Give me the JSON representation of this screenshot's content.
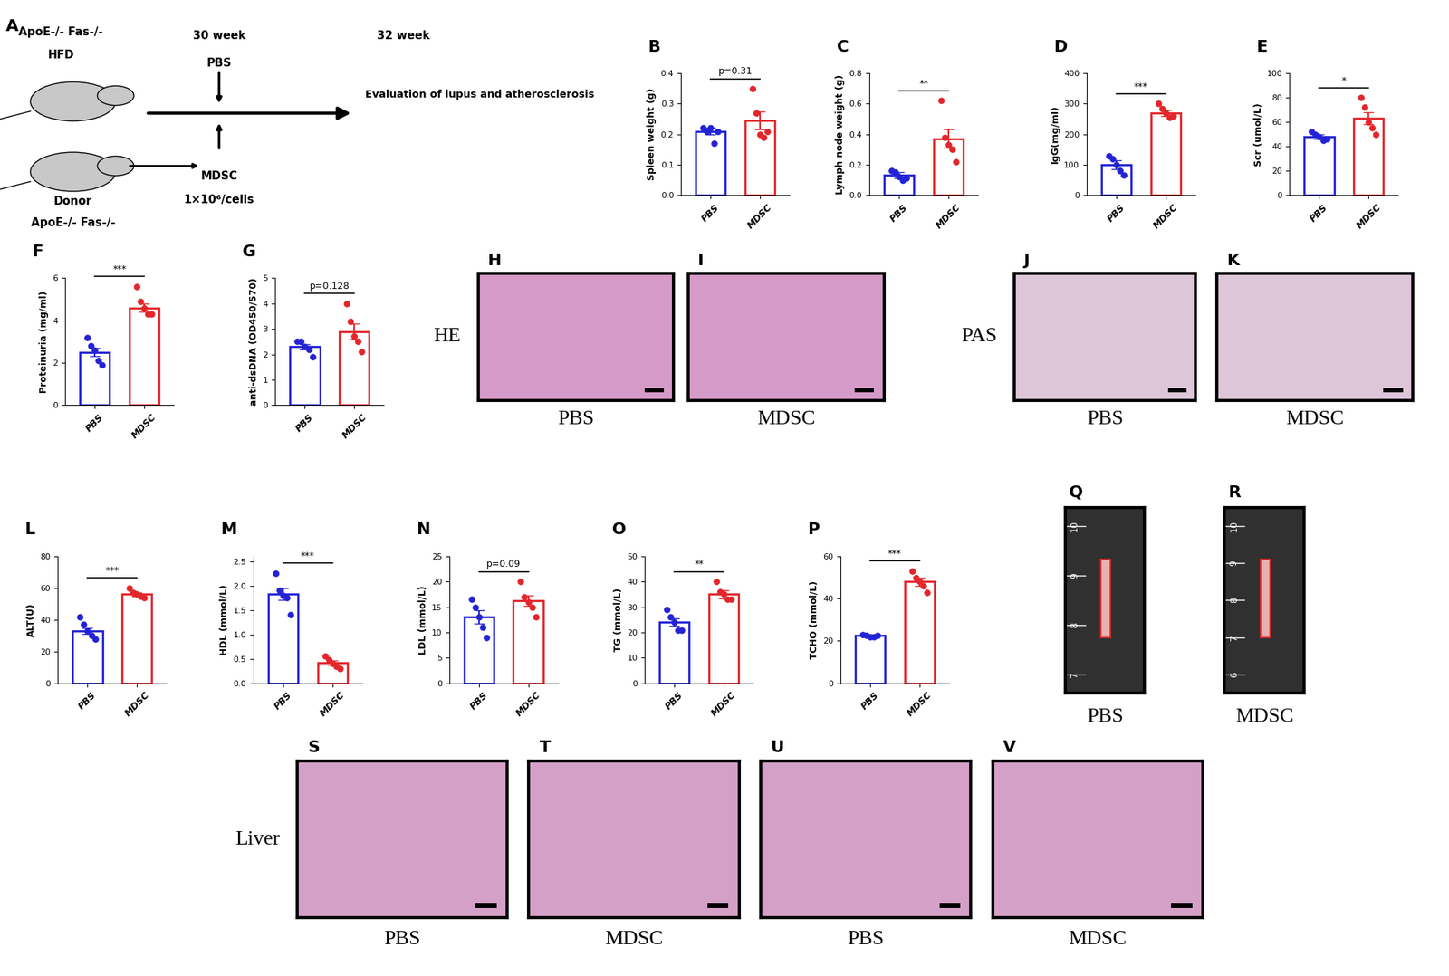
{
  "chart_data": [
    {
      "type": "bar",
      "panel": "B",
      "categories": [
        "PBS",
        "MDSC"
      ],
      "values": [
        0.21,
        0.245
      ],
      "errors": [
        0.01,
        0.03
      ],
      "points": [
        [
          0.22,
          0.21,
          0.22,
          0.17,
          0.21
        ],
        [
          0.35,
          0.27,
          0.2,
          0.19,
          0.21
        ]
      ],
      "colors": [
        "#2323d6",
        "#e3262b"
      ],
      "y_label": "Spleen weight (g)",
      "ylim": [
        0,
        0.4
      ],
      "yticks": [
        0.0,
        0.1,
        0.2,
        0.3,
        0.4
      ],
      "significance": "p=0.31"
    },
    {
      "type": "bar",
      "panel": "C",
      "categories": [
        "PBS",
        "MDSC"
      ],
      "values": [
        0.13,
        0.37
      ],
      "errors": [
        0.02,
        0.06
      ],
      "points": [
        [
          0.16,
          0.15,
          0.12,
          0.1,
          0.11
        ],
        [
          0.62,
          0.38,
          0.33,
          0.3,
          0.22
        ]
      ],
      "colors": [
        "#2323d6",
        "#e3262b"
      ],
      "y_label": "Lymph node weight (g)",
      "ylim": [
        0,
        0.8
      ],
      "yticks": [
        0.0,
        0.2,
        0.4,
        0.6,
        0.8
      ],
      "significance": "**"
    },
    {
      "type": "bar",
      "panel": "D",
      "categories": [
        "PBS",
        "MDSC"
      ],
      "values": [
        100,
        270
      ],
      "errors": [
        15,
        10
      ],
      "points": [
        [
          130,
          120,
          100,
          80,
          65
        ],
        [
          300,
          285,
          270,
          255,
          260
        ]
      ],
      "colors": [
        "#2323d6",
        "#e3262b"
      ],
      "y_label": "IgG(mg/ml)",
      "ylim": [
        0,
        400
      ],
      "yticks": [
        0,
        100,
        200,
        300,
        400
      ],
      "significance": "***"
    },
    {
      "type": "bar",
      "panel": "E",
      "categories": [
        "PBS",
        "MDSC"
      ],
      "values": [
        48,
        63
      ],
      "errors": [
        2,
        5
      ],
      "points": [
        [
          52,
          50,
          48,
          45,
          46
        ],
        [
          80,
          72,
          60,
          55,
          50
        ]
      ],
      "colors": [
        "#2323d6",
        "#e3262b"
      ],
      "y_label": "Scr (umol/L)",
      "ylim": [
        0,
        100
      ],
      "yticks": [
        0,
        20,
        40,
        60,
        80,
        100
      ],
      "significance": "*"
    },
    {
      "type": "bar",
      "panel": "F",
      "categories": [
        "PBS",
        "MDSC"
      ],
      "values": [
        2.5,
        4.6
      ],
      "errors": [
        0.2,
        0.2
      ],
      "points": [
        [
          3.2,
          2.8,
          2.6,
          2.1,
          1.9
        ],
        [
          5.6,
          4.9,
          4.6,
          4.3,
          4.3
        ]
      ],
      "colors": [
        "#2323d6",
        "#e3262b"
      ],
      "y_label": "Proteinuria (mg/ml)",
      "ylim": [
        0,
        6
      ],
      "yticks": [
        0,
        2,
        4,
        6
      ],
      "significance": "***"
    },
    {
      "type": "bar",
      "panel": "G",
      "categories": [
        "PBS",
        "MDSC"
      ],
      "values": [
        2.3,
        2.9
      ],
      "errors": [
        0.1,
        0.3
      ],
      "points": [
        [
          2.5,
          2.5,
          2.3,
          2.2,
          1.9
        ],
        [
          4.0,
          3.3,
          2.7,
          2.5,
          2.1
        ]
      ],
      "colors": [
        "#2323d6",
        "#e3262b"
      ],
      "y_label": "anti-dsDNA (OD450/570)",
      "ylim": [
        0,
        5
      ],
      "yticks": [
        0,
        1,
        2,
        3,
        4,
        5
      ],
      "significance": "p=0.128"
    },
    {
      "type": "bar",
      "panel": "L",
      "categories": [
        "PBS",
        "MDSC"
      ],
      "values": [
        33,
        56
      ],
      "errors": [
        2,
        1
      ],
      "points": [
        [
          42,
          37,
          33,
          30,
          28
        ],
        [
          60,
          57,
          56,
          55,
          54
        ]
      ],
      "colors": [
        "#2323d6",
        "#e3262b"
      ],
      "y_label": "ALT(U)",
      "ylim": [
        0,
        80
      ],
      "yticks": [
        0,
        20,
        40,
        60,
        80
      ],
      "significance": "***"
    },
    {
      "type": "bar",
      "panel": "M",
      "categories": [
        "PBS",
        "MDSC"
      ],
      "values": [
        1.83,
        0.42
      ],
      "errors": [
        0.12,
        0.05
      ],
      "points": [
        [
          2.25,
          1.9,
          1.8,
          1.75,
          1.4
        ],
        [
          0.55,
          0.48,
          0.4,
          0.35,
          0.3
        ]
      ],
      "colors": [
        "#2323d6",
        "#e3262b"
      ],
      "y_label": "HDL (mmol/L)",
      "ylim": [
        0,
        2.6
      ],
      "yticks": [
        0.0,
        0.5,
        1.0,
        1.5,
        2.0,
        2.5
      ],
      "significance": "***"
    },
    {
      "type": "bar",
      "panel": "N",
      "categories": [
        "PBS",
        "MDSC"
      ],
      "values": [
        13,
        16.3
      ],
      "errors": [
        1.3,
        1
      ],
      "points": [
        [
          16.5,
          15,
          13,
          11,
          9
        ],
        [
          20,
          17,
          16,
          15,
          13
        ]
      ],
      "colors": [
        "#2323d6",
        "#e3262b"
      ],
      "y_label": "LDL (mmol/L)",
      "ylim": [
        0,
        25
      ],
      "yticks": [
        0,
        5,
        10,
        15,
        20,
        25
      ],
      "significance": "p=0.09"
    },
    {
      "type": "bar",
      "panel": "O",
      "categories": [
        "PBS",
        "MDSC"
      ],
      "values": [
        24,
        35
      ],
      "errors": [
        1.5,
        1.5
      ],
      "points": [
        [
          29,
          26,
          24,
          21,
          21
        ],
        [
          40,
          36,
          35,
          33,
          33
        ]
      ],
      "colors": [
        "#2323d6",
        "#e3262b"
      ],
      "y_label": "TG (mmol/L)",
      "ylim": [
        0,
        50
      ],
      "yticks": [
        0,
        10,
        20,
        30,
        40,
        50
      ],
      "significance": "**"
    },
    {
      "type": "bar",
      "panel": "P",
      "categories": [
        "PBS",
        "MDSC"
      ],
      "values": [
        22.5,
        48
      ],
      "errors": [
        0.4,
        2
      ],
      "points": [
        [
          23,
          22.5,
          22,
          22,
          22.5
        ],
        [
          53,
          50,
          48,
          46,
          43
        ]
      ],
      "colors": [
        "#2323d6",
        "#e3262b"
      ],
      "y_label": "TCHO (mmol/L)",
      "ylim": [
        0,
        60
      ],
      "yticks": [
        0,
        20,
        40,
        60
      ],
      "significance": "***"
    }
  ],
  "schematic": {
    "panel": "A",
    "recipient": "ApoE-/- Fas-/-",
    "diet": "HFD",
    "donor_label": "Donor",
    "donor": "ApoE-/- Fas-/-",
    "start": "30 week",
    "end": "32 week",
    "control": "PBS",
    "treatment": "MDSC",
    "dose": "1×10⁶/cells",
    "outcome": "Evaluation of lupus and atherosclerosis"
  },
  "image_panels": [
    {
      "row_label": "HE",
      "color": "#d69ac8",
      "images": [
        {
          "panel": "H",
          "label": "PBS"
        },
        {
          "panel": "I",
          "label": "MDSC"
        }
      ]
    },
    {
      "row_label": "PAS",
      "color": "#dcc6d8",
      "images": [
        {
          "panel": "J",
          "label": "PBS"
        },
        {
          "panel": "K",
          "label": "MDSC"
        }
      ]
    },
    {
      "color": "#303030",
      "images": [
        {
          "panel": "Q",
          "label": "PBS",
          "ruler": [
            "10",
            "9",
            "8",
            "7"
          ]
        },
        {
          "panel": "R",
          "label": "MDSC",
          "ruler": [
            "10",
            "9",
            "8",
            "7",
            "6"
          ]
        }
      ]
    },
    {
      "row_label": "Liver",
      "color": "#d4a0c8",
      "images": [
        {
          "panel": "S",
          "label": "PBS"
        },
        {
          "panel": "T",
          "label": "MDSC"
        },
        {
          "panel": "U",
          "label": "PBS"
        },
        {
          "panel": "V",
          "label": "MDSC"
        }
      ]
    }
  ]
}
